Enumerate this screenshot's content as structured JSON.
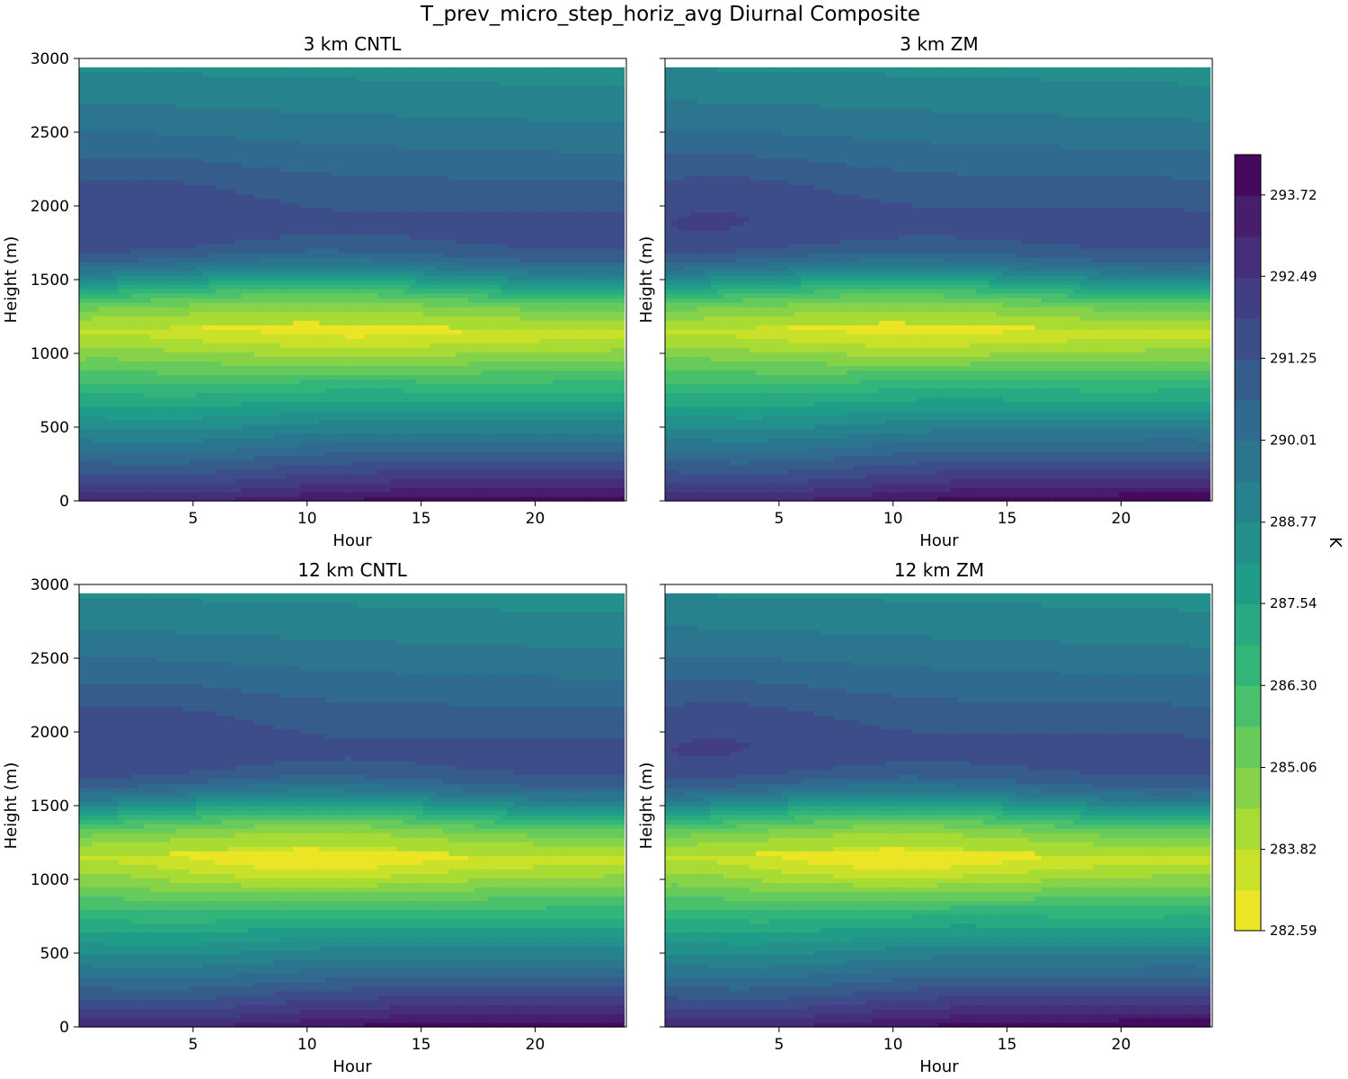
{
  "figure": {
    "title": "T_prev_micro_step_horiz_avg Diurnal Composite"
  },
  "chart_data": {
    "type": "heatmap",
    "variable": "T_prev_micro_step_horiz_avg",
    "units": "K",
    "colormap": "viridis_r",
    "x": {
      "label": "Hour",
      "range": [
        0,
        24
      ],
      "ticks": [
        5,
        10,
        15,
        20
      ],
      "data_max": 23.9
    },
    "y": {
      "label": "Height (m)",
      "range": [
        0,
        3000
      ],
      "ticks": [
        0,
        500,
        1000,
        1500,
        2000,
        2500,
        3000
      ],
      "data_max": 2940
    },
    "colorbar": {
      "label": "K",
      "min": 282.59,
      "max": 294.33,
      "levels": 19,
      "ticks": [
        282.59,
        283.82,
        285.06,
        286.3,
        287.54,
        288.77,
        290.01,
        291.25,
        292.49,
        293.72
      ]
    },
    "panels": [
      {
        "title": "3 km CNTL",
        "hot_core": 283.0,
        "hot_core_hour": 11.5,
        "upper_cool_core": 291.8,
        "variant": 0
      },
      {
        "title": "3 km ZM",
        "hot_core": 283.1,
        "hot_core_hour": 11.0,
        "upper_cool_core": 291.7,
        "variant": 1
      },
      {
        "title": "12 km CNTL",
        "hot_core": 282.6,
        "hot_core_hour": 10.5,
        "upper_cool_core": 291.8,
        "variant": 2
      },
      {
        "title": "12 km ZM",
        "hot_core": 282.7,
        "hot_core_hour": 10.5,
        "upper_cool_core": 291.7,
        "variant": 3
      }
    ]
  }
}
